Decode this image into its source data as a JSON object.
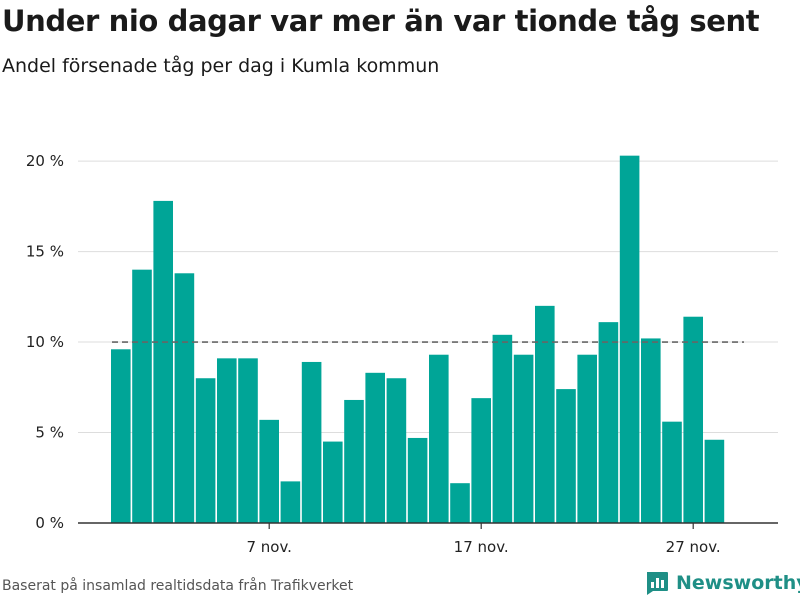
{
  "header": {
    "title": "Under nio dagar var mer än var tionde tåg sent",
    "subtitle": "Andel försenade tåg per dag i Kumla kommun"
  },
  "footer": {
    "source": "Baserat på insamlad realtidsdata från Trafikverket",
    "brand": "Newsworthy",
    "brand_icon": "bar-chart-logo-icon"
  },
  "colors": {
    "bar": "#00a597",
    "grid": "#dddddd",
    "reference_line": "#666666",
    "brand": "#1f8f86"
  },
  "chart_data": {
    "type": "bar",
    "x_start": "2023-10-31",
    "y_unit": "%",
    "ylim": [
      0,
      21
    ],
    "yticks": [
      0,
      5,
      10,
      15,
      20
    ],
    "ytick_labels": [
      "0 %",
      "5 %",
      "10 %",
      "15 %",
      "20 %"
    ],
    "xticks": [
      {
        "date": "2023-11-07",
        "label": "7 nov."
      },
      {
        "date": "2023-11-17",
        "label": "17 nov."
      },
      {
        "date": "2023-11-27",
        "label": "27 nov."
      }
    ],
    "values": [
      9.6,
      14.0,
      17.8,
      13.8,
      8.0,
      9.1,
      9.1,
      5.7,
      2.3,
      8.9,
      4.5,
      6.8,
      8.3,
      8.0,
      4.7,
      9.3,
      2.2,
      6.9,
      10.4,
      9.3,
      12.0,
      7.4,
      9.3,
      11.1,
      20.3,
      10.2,
      5.6,
      11.4,
      4.6
    ],
    "reference_line": {
      "value": 10,
      "style": "dashed"
    },
    "grid": true,
    "legend": "none"
  }
}
